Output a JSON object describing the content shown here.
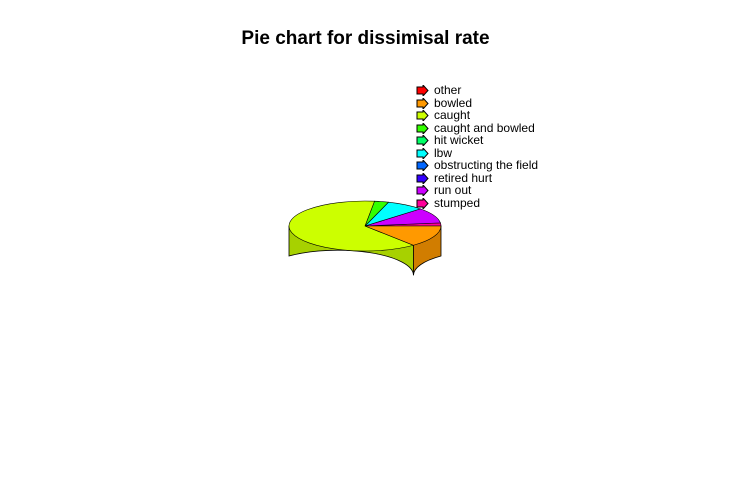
{
  "chart_data": {
    "type": "pie",
    "title": "Pie chart for dissimisal rate",
    "categories": [
      "other",
      "bowled",
      "caught",
      "caught and bowled",
      "hit wicket",
      "lbw",
      "obstructing the field",
      "retired hurt",
      "run out",
      "stumped"
    ],
    "values": [
      0,
      14,
      63,
      3,
      0,
      8,
      0,
      0,
      10,
      2
    ],
    "colors": [
      "#ff0000",
      "#ff9900",
      "#ccff00",
      "#33ff00",
      "#00ff66",
      "#00ffff",
      "#0066ff",
      "#3300ff",
      "#cc00ff",
      "#ff0099"
    ],
    "legend_position": "top-right",
    "style": "3d"
  }
}
